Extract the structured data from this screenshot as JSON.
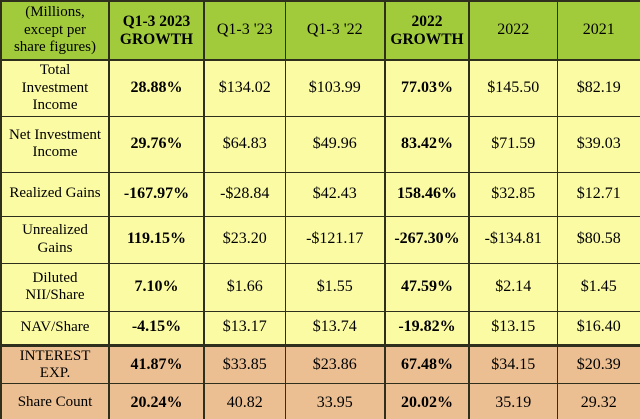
{
  "colors": {
    "header_bg": "#a2cb3c",
    "body_row_bg": "#fbfba4",
    "highlight_band_bg": "#ecbf92",
    "grid_border": "#2f2f1e",
    "text": "#000000"
  },
  "chart_data": {
    "type": "table",
    "title": "",
    "columns": [
      "(Millions,\nexcept per\nshare figures)",
      "Q1-3 2023\nGROWTH",
      "Q1-3 '23",
      "Q1-3 '22",
      "2022\nGROWTH",
      "2022",
      "2021"
    ],
    "growth_column_indexes": [
      1,
      4
    ],
    "rows": [
      {
        "label": "Total\nInvestment\nIncome",
        "values": [
          "28.88%",
          "$134.02",
          "$103.99",
          "77.03%",
          "$145.50",
          "$82.19"
        ],
        "highlight": "yellow"
      },
      {
        "label": "Net Investment\nIncome",
        "values": [
          "29.76%",
          "$64.83",
          "$49.96",
          "83.42%",
          "$71.59",
          "$39.03"
        ],
        "highlight": "yellow"
      },
      {
        "label": "Realized Gains",
        "values": [
          "-167.97%",
          "-$28.84",
          "$42.43",
          "158.46%",
          "$32.85",
          "$12.71"
        ],
        "highlight": "yellow"
      },
      {
        "label": "Unrealized\nGains",
        "values": [
          "119.15%",
          "$23.20",
          "-$121.17",
          "-267.30%",
          "-$134.81",
          "$80.58"
        ],
        "highlight": "yellow"
      },
      {
        "label": "Diluted\nNII/Share",
        "values": [
          "7.10%",
          "$1.66",
          "$1.55",
          "47.59%",
          "$2.14",
          "$1.45"
        ],
        "highlight": "yellow"
      },
      {
        "label": "NAV/Share",
        "values": [
          "-4.15%",
          "$13.17",
          "$13.74",
          "-19.82%",
          "$13.15",
          "$16.40"
        ],
        "highlight": "yellow"
      },
      {
        "label": "INTEREST EXP.",
        "values": [
          "41.87%",
          "$33.85",
          "$23.86",
          "67.48%",
          "$34.15",
          "$20.39"
        ],
        "highlight": "tan"
      },
      {
        "label": "Share Count",
        "values": [
          "20.24%",
          "40.82",
          "33.95",
          "20.02%",
          "35.19",
          "29.32"
        ],
        "highlight": "tan"
      }
    ]
  }
}
